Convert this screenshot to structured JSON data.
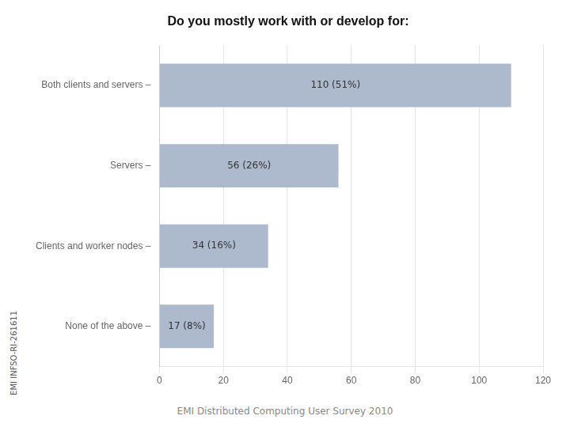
{
  "chart_data": {
    "type": "bar",
    "orientation": "horizontal",
    "title": "Do you mostly work with or develop for:",
    "categories": [
      "Both clients and servers –",
      "Servers –",
      "Clients and worker nodes –",
      "None of the above –"
    ],
    "values": [
      110,
      56,
      34,
      17
    ],
    "value_labels": [
      "110 (51%)",
      "56 (26%)",
      "34 (16%)",
      "17 (8%)"
    ],
    "data_labels": true,
    "color": "#adb9cc",
    "xlim": [
      0,
      120
    ],
    "xticks": [
      0,
      20,
      40,
      60,
      80,
      100,
      120
    ],
    "grid": true,
    "annotations": [
      "EMI Distributed Computing User Survey 2010",
      "EMI INFSO-RI-261611"
    ]
  }
}
